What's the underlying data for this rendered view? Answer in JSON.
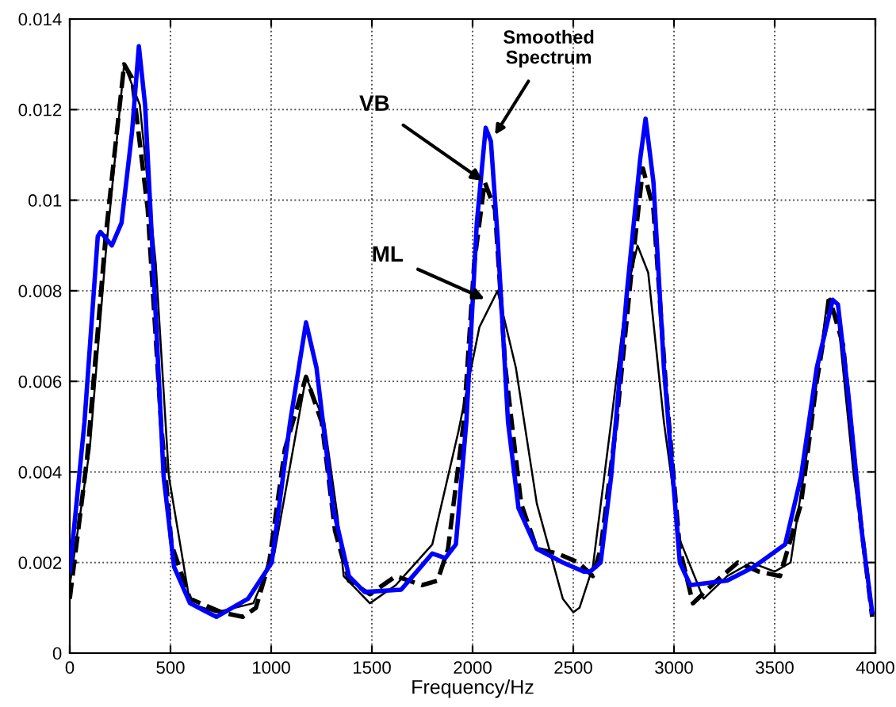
{
  "chart_data": {
    "type": "line",
    "xlabel": "Frequency/Hz",
    "xlim": [
      0,
      4000
    ],
    "xticks": [
      0,
      500,
      1000,
      1500,
      2000,
      2500,
      3000,
      3500,
      4000
    ],
    "ylim": [
      0,
      0.014
    ],
    "yticks": [
      0,
      0.002,
      0.004,
      0.006,
      0.008,
      0.01,
      0.012,
      0.014
    ],
    "grid": true,
    "legend": false,
    "marker": "none",
    "series": [
      {
        "color": "#000000",
        "line_style": "solid",
        "x": [
          0,
          99,
          178,
          270,
          348,
          427,
          492,
          597,
          728,
          911,
          1016,
          1173,
          1264,
          1330,
          1360,
          1490,
          1619,
          1800,
          1930,
          2034,
          2124,
          2215,
          2319,
          2448,
          2500,
          2531,
          2597,
          2688,
          2767,
          2819,
          2872,
          2950,
          3029,
          3147,
          3264,
          3382,
          3500,
          3579,
          3683,
          3762,
          3814,
          3893,
          3984
        ],
        "values": [
          0.0015,
          0.0045,
          0.0088,
          0.013,
          0.0121,
          0.0086,
          0.0039,
          0.0011,
          0.0009,
          0.0011,
          0.0022,
          0.0061,
          0.0051,
          0.003,
          0.0017,
          0.0011,
          0.0015,
          0.0024,
          0.0049,
          0.0072,
          0.008,
          0.0063,
          0.0033,
          0.0012,
          0.0009,
          0.001,
          0.0019,
          0.0051,
          0.008,
          0.009,
          0.0084,
          0.0051,
          0.0025,
          0.0012,
          0.0017,
          0.002,
          0.0018,
          0.002,
          0.0051,
          0.0078,
          0.0074,
          0.0039,
          0.001
        ]
      },
      {
        "color": "#000000",
        "line_style": "dashed",
        "x": [
          0,
          86,
          178,
          270,
          309,
          387,
          453,
          505,
          597,
          754,
          859,
          924,
          990,
          1068,
          1173,
          1251,
          1317,
          1386,
          1490,
          1619,
          1749,
          1826,
          1878,
          1956,
          2008,
          2060,
          2111,
          2163,
          2241,
          2319,
          2422,
          2526,
          2597,
          2636,
          2715,
          2793,
          2846,
          2898,
          2963,
          3029,
          3094,
          3212,
          3317,
          3421,
          3526,
          3631,
          3709,
          3775,
          3840,
          3919,
          3984
        ],
        "values": [
          0.0012,
          0.0043,
          0.0092,
          0.013,
          0.0127,
          0.0098,
          0.0051,
          0.0024,
          0.0012,
          0.0009,
          0.0008,
          0.001,
          0.002,
          0.0045,
          0.0061,
          0.0051,
          0.0027,
          0.0016,
          0.0013,
          0.0017,
          0.0015,
          0.0016,
          0.0023,
          0.0051,
          0.0086,
          0.0104,
          0.0098,
          0.0063,
          0.0033,
          0.0023,
          0.0022,
          0.002,
          0.0017,
          0.0023,
          0.0051,
          0.0086,
          0.0107,
          0.0098,
          0.0057,
          0.0023,
          0.0011,
          0.0016,
          0.002,
          0.0018,
          0.0017,
          0.0033,
          0.006,
          0.0078,
          0.0068,
          0.0032,
          0.0008
        ]
      },
      {
        "color": "#0000ff",
        "line_style": "solid",
        "x": [
          0,
          73,
          139,
          152,
          209,
          257,
          309,
          343,
          374,
          414,
          466,
          518,
          597,
          728,
          885,
          1003,
          1094,
          1173,
          1225,
          1308,
          1386,
          1464,
          1645,
          1723,
          1800,
          1865,
          1917,
          1969,
          2021,
          2065,
          2091,
          2124,
          2176,
          2228,
          2319,
          2448,
          2552,
          2584,
          2636,
          2688,
          2767,
          2832,
          2859,
          2898,
          2950,
          3029,
          3081,
          3264,
          3395,
          3552,
          3631,
          3709,
          3788,
          3814,
          3866,
          3932,
          3984
        ],
        "values": [
          0.0018,
          0.0051,
          0.0092,
          0.0093,
          0.009,
          0.0095,
          0.0115,
          0.0134,
          0.0121,
          0.0086,
          0.0039,
          0.0019,
          0.0011,
          0.0008,
          0.0012,
          0.002,
          0.0051,
          0.0073,
          0.0063,
          0.0032,
          0.0017,
          0.00135,
          0.0014,
          0.0018,
          0.0022,
          0.0021,
          0.0024,
          0.0051,
          0.0095,
          0.0116,
          0.0113,
          0.0092,
          0.0051,
          0.0032,
          0.0023,
          0.002,
          0.0018,
          0.0018,
          0.002,
          0.0039,
          0.008,
          0.0109,
          0.0118,
          0.0104,
          0.0063,
          0.002,
          0.0015,
          0.0016,
          0.0019,
          0.0024,
          0.0039,
          0.0063,
          0.0078,
          0.0077,
          0.0057,
          0.0027,
          0.0009
        ]
      }
    ],
    "annotations": [
      {
        "text": "VB",
        "x": 2060,
        "y": 0.0104
      },
      {
        "text": "Smoothed\nSpectrum",
        "x": 2105,
        "y": 0.0114
      },
      {
        "text": "ML",
        "x": 2070,
        "y": 0.0078
      }
    ]
  }
}
